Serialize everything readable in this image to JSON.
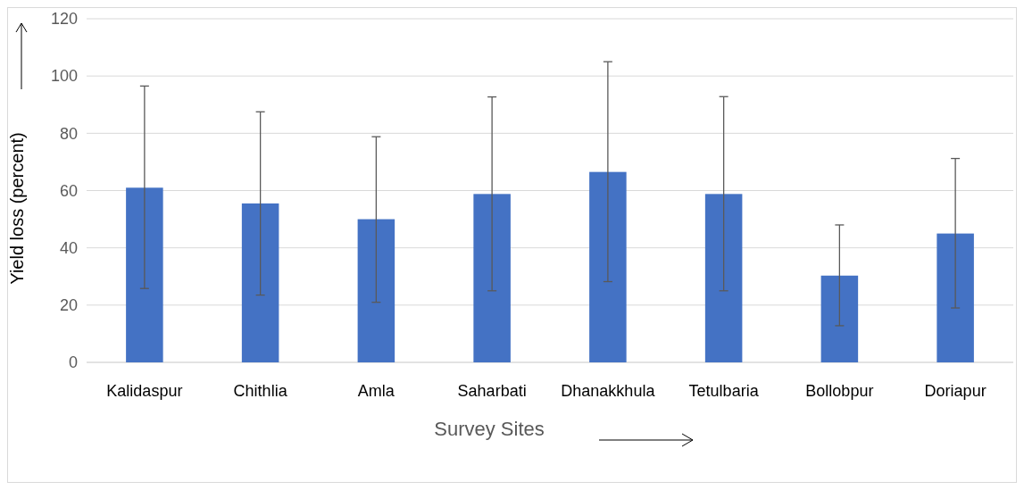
{
  "chart_data": {
    "type": "bar",
    "xlabel": "Survey Sites",
    "ylabel": "Yield loss (percent)",
    "categories": [
      "Kalidaspur",
      "Chithlia",
      "Amla",
      "Saharbati",
      "Dhanakkhula",
      "Tetulbaria",
      "Bollobpur",
      "Doriapur"
    ],
    "values": [
      61,
      55.5,
      50,
      58.8,
      66.5,
      58.8,
      30.3,
      45
    ],
    "errors": [
      [
        25.8,
        96.5
      ],
      [
        23.5,
        87.5
      ],
      [
        21,
        78.8
      ],
      [
        25,
        92.7
      ],
      [
        28.2,
        105
      ],
      [
        25,
        92.8
      ],
      [
        12.8,
        48
      ],
      [
        19,
        71.2
      ]
    ],
    "color": "#4472c4",
    "ylim": [
      0,
      120
    ],
    "yticks": [
      0,
      20,
      40,
      60,
      80,
      100,
      120
    ],
    "grid": "y"
  }
}
